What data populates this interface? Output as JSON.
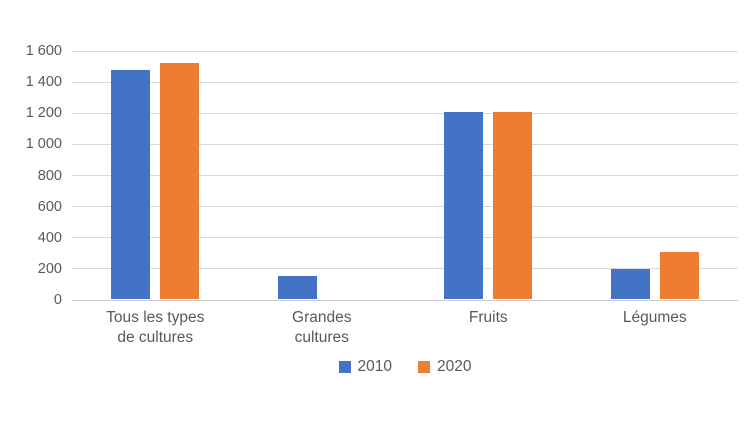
{
  "chart_data": {
    "type": "bar",
    "categories": [
      "Tous les types\nde cultures",
      "Grandes\ncultures",
      "Fruits",
      "Légumes"
    ],
    "series": [
      {
        "name": "2010",
        "color": "#4472C4",
        "values": [
          1470,
          150,
          1200,
          190
        ]
      },
      {
        "name": "2020",
        "color": "#ED7D31",
        "values": [
          1515,
          0,
          1200,
          300
        ]
      }
    ],
    "ylim": [
      0,
      1600
    ],
    "ytick_step": 200,
    "ytick_labels": [
      "0",
      "200",
      "400",
      "600",
      "800",
      "1 000",
      "1 200",
      "1 400",
      "1 600"
    ],
    "grid": true,
    "legend_position": "bottom-center",
    "text_color": "#595959",
    "gridline_color": "#d9d9d9"
  }
}
